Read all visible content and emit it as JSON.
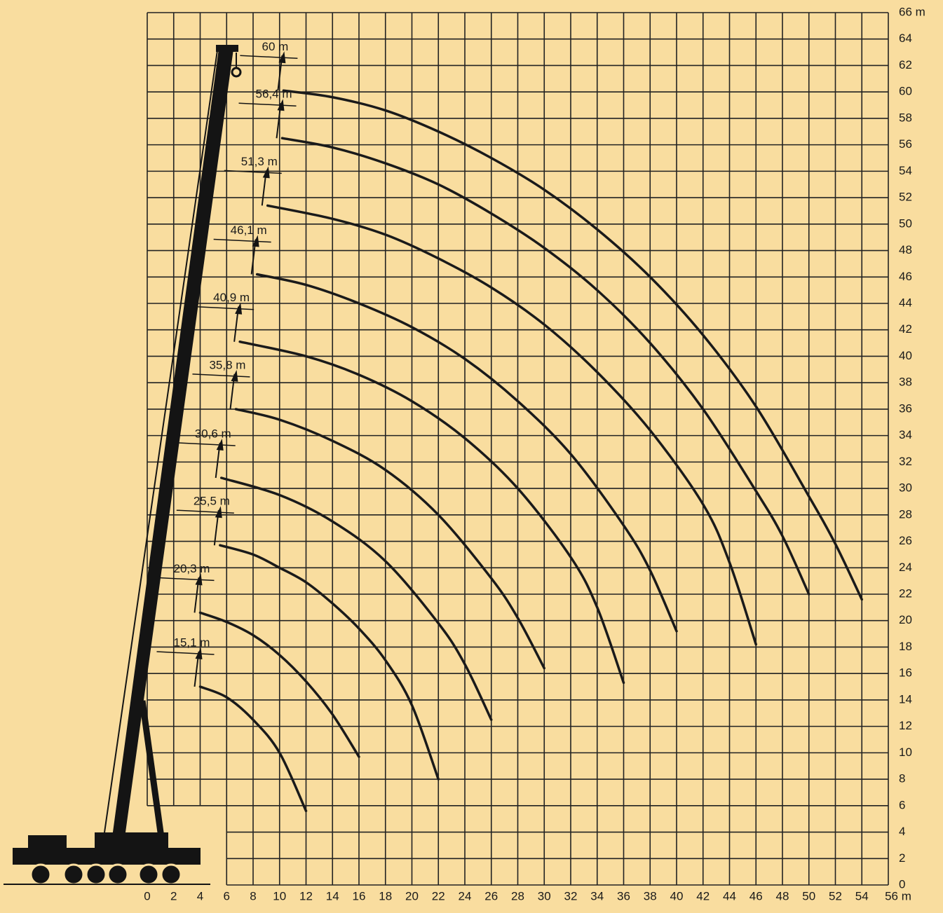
{
  "chart_data": {
    "type": "line",
    "xlim": [
      0,
      56
    ],
    "ylim": [
      0,
      66
    ],
    "xticks": [
      0,
      2,
      4,
      6,
      8,
      10,
      12,
      14,
      16,
      18,
      20,
      22,
      24,
      26,
      28,
      30,
      32,
      34,
      36,
      38,
      40,
      42,
      44,
      46,
      48,
      50,
      52,
      54,
      {
        "value": 56,
        "label": "56 m"
      }
    ],
    "yticks": [
      0,
      2,
      4,
      6,
      8,
      10,
      12,
      14,
      16,
      18,
      20,
      22,
      24,
      26,
      28,
      30,
      32,
      34,
      36,
      38,
      40,
      42,
      44,
      46,
      48,
      50,
      52,
      54,
      56,
      58,
      60,
      62,
      64,
      {
        "value": 66,
        "label": "66 m"
      }
    ],
    "grid": true,
    "color": "#1a1a1a",
    "series": [
      {
        "name": "15,1 m",
        "x": [
          4,
          6,
          8,
          10,
          12
        ],
        "values": [
          15,
          14.2,
          12.5,
          10,
          5.6
        ]
      },
      {
        "name": "20,3 m",
        "x": [
          4,
          6,
          8,
          10,
          12,
          14,
          16
        ],
        "values": [
          20.6,
          19.9,
          18.9,
          17.4,
          15.4,
          12.9,
          9.7
        ]
      },
      {
        "name": "25,5 m",
        "x": [
          5.5,
          8,
          10,
          12,
          14,
          16,
          18,
          20,
          22
        ],
        "values": [
          25.7,
          25,
          24,
          22.9,
          21.3,
          19.4,
          17,
          13.6,
          8
        ]
      },
      {
        "name": "30,6 m",
        "x": [
          5.6,
          10,
          14,
          18,
          22,
          24,
          26
        ],
        "values": [
          30.8,
          29.5,
          27.5,
          24.5,
          19.8,
          16.7,
          12.5
        ]
      },
      {
        "name": "35,8 m",
        "x": [
          6.7,
          10,
          14,
          18,
          22,
          26,
          28,
          30
        ],
        "values": [
          36,
          35.2,
          33.6,
          31.4,
          28,
          23.2,
          20.2,
          16.4
        ]
      },
      {
        "name": "40,9 m",
        "x": [
          7,
          12,
          16,
          20,
          24,
          28,
          32,
          34,
          36
        ],
        "values": [
          41.1,
          40,
          38.6,
          36.6,
          33.8,
          30,
          24.8,
          21,
          15.3
        ]
      },
      {
        "name": "46,1 m",
        "x": [
          8.3,
          12,
          16,
          20,
          24,
          28,
          32,
          36,
          38,
          40
        ],
        "values": [
          46.2,
          45.4,
          44,
          42.2,
          39.8,
          36.6,
          32.6,
          27.2,
          23.8,
          19.2
        ]
      },
      {
        "name": "51,3 m",
        "x": [
          9.1,
          14,
          18,
          22,
          26,
          30,
          34,
          38,
          42,
          44,
          46
        ],
        "values": [
          51.4,
          50.4,
          49.2,
          47.4,
          45.2,
          42.4,
          38.8,
          34.4,
          28.8,
          24.4,
          18.2
        ]
      },
      {
        "name": "56,4 m",
        "x": [
          10.2,
          14,
          18,
          22,
          26,
          30,
          34,
          38,
          42,
          46,
          48,
          50
        ],
        "values": [
          56.5,
          55.8,
          54.6,
          53,
          50.8,
          48.2,
          45,
          41,
          36,
          29.8,
          26.4,
          22
        ]
      },
      {
        "name": "60 m",
        "x": [
          10.3,
          14,
          18,
          22,
          26,
          30,
          34,
          38,
          42,
          46,
          50,
          52,
          54
        ],
        "values": [
          60.1,
          59.6,
          58.6,
          57,
          55,
          52.6,
          49.6,
          46,
          41.6,
          36.2,
          29.4,
          25.8,
          21.6
        ]
      }
    ]
  }
}
